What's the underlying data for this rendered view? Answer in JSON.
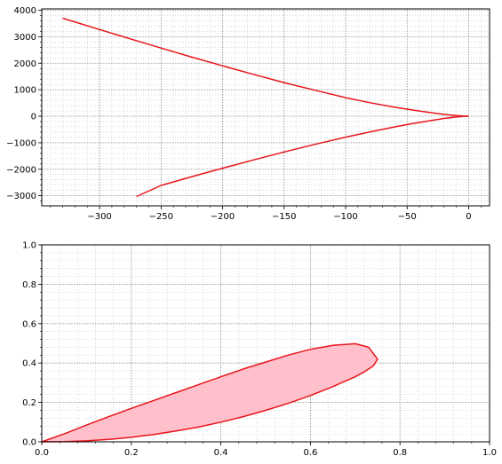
{
  "chart_data": [
    {
      "type": "line",
      "title": "",
      "xlabel": "",
      "ylabel": "",
      "xlim": [
        -347,
        17
      ],
      "ylim": [
        -3380,
        4050
      ],
      "grid": "major and minor, dotted gray",
      "xticks": [
        -300,
        -250,
        -200,
        -150,
        -100,
        -50,
        0
      ],
      "xtick_labels": [
        "−300",
        "−250",
        "−200",
        "−150",
        "−100",
        "−50",
        "0"
      ],
      "yticks": [
        -3000,
        -2000,
        -1000,
        0,
        1000,
        2000,
        3000,
        4000
      ],
      "ytick_labels": [
        "−3000",
        "−2000",
        "−1000",
        "0",
        "1000",
        "2000",
        "3000",
        "4000"
      ],
      "colors": {
        "line": "#e8141b"
      },
      "series": [
        {
          "x": [
            -330,
            -300,
            -275,
            -250,
            -225,
            -200,
            -175,
            -150,
            -125,
            -100,
            -80,
            -60,
            -45,
            -30,
            -20,
            -10,
            -5,
            0
          ],
          "y": [
            3700,
            3270,
            2920,
            2570,
            2230,
            1900,
            1580,
            1270,
            980,
            700,
            510,
            340,
            230,
            130,
            70,
            25,
            8,
            0
          ]
        },
        {
          "x": [
            0,
            -5,
            -10,
            -20,
            -30,
            -45,
            -60,
            -80,
            -100,
            -125,
            -150,
            -175,
            -200,
            -225,
            -250,
            -270
          ],
          "y": [
            0,
            -10,
            -30,
            -85,
            -160,
            -270,
            -400,
            -590,
            -790,
            -1060,
            -1350,
            -1650,
            -1960,
            -2280,
            -2610,
            -3030
          ]
        }
      ]
    },
    {
      "type": "area",
      "title": "",
      "xlabel": "",
      "ylabel": "",
      "xlim": [
        0,
        1
      ],
      "ylim": [
        0,
        1
      ],
      "grid": "major and minor, dotted gray",
      "xticks": [
        0,
        0.2,
        0.4,
        0.6,
        0.8,
        1.0
      ],
      "xtick_labels": [
        "0.0",
        "0.2",
        "0.4",
        "0.6",
        "0.8",
        "1.0"
      ],
      "yticks": [
        0,
        0.2,
        0.4,
        0.6,
        0.8,
        1.0
      ],
      "ytick_labels": [
        "0.0",
        "0.2",
        "0.4",
        "0.6",
        "0.8",
        "1.0"
      ],
      "colors": {
        "line": "#e8141b",
        "fill": "#ffc0cb"
      },
      "series": [
        {
          "x": [
            0,
            0.05,
            0.1,
            0.15,
            0.2,
            0.25,
            0.3,
            0.35,
            0.4,
            0.45,
            0.5,
            0.55,
            0.6,
            0.65,
            0.7,
            0.73,
            0.75,
            0.74,
            0.72,
            0.7,
            0.65,
            0.6,
            0.55,
            0.5,
            0.45,
            0.4,
            0.35,
            0.3,
            0.25,
            0.2,
            0.15,
            0.1,
            0.05,
            0
          ],
          "y": [
            0,
            0.04,
            0.085,
            0.128,
            0.17,
            0.21,
            0.25,
            0.29,
            0.33,
            0.37,
            0.405,
            0.44,
            0.47,
            0.49,
            0.498,
            0.48,
            0.42,
            0.385,
            0.355,
            0.33,
            0.28,
            0.235,
            0.195,
            0.16,
            0.128,
            0.1,
            0.075,
            0.055,
            0.037,
            0.023,
            0.012,
            0.005,
            0.001,
            0
          ]
        }
      ]
    }
  ]
}
